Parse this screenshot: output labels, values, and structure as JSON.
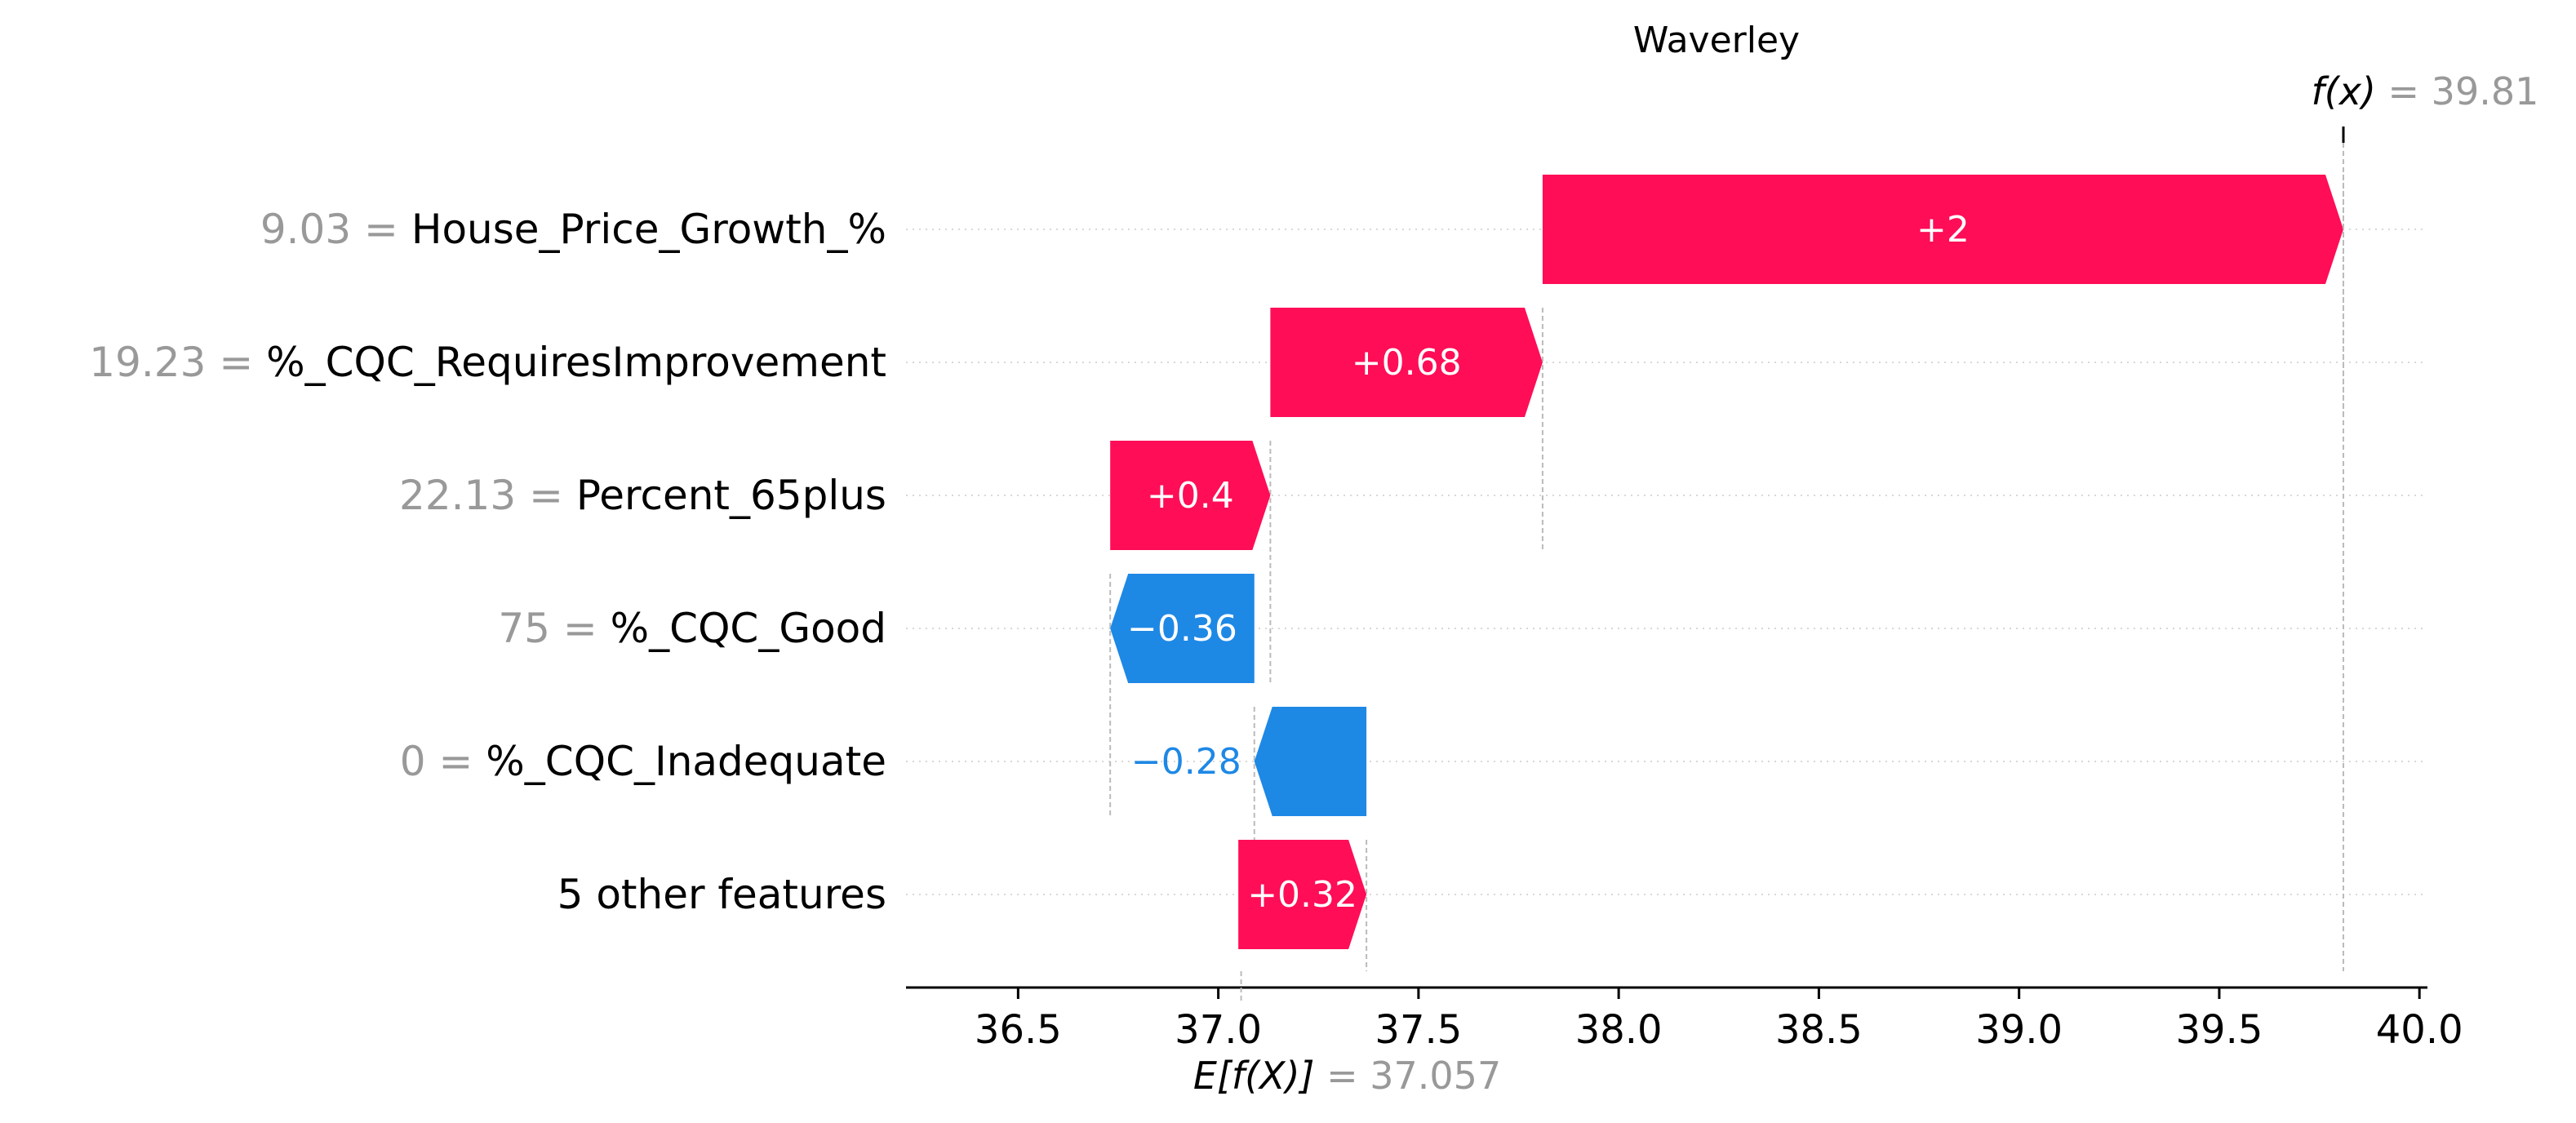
{
  "chart_data": {
    "type": "waterfall",
    "title": "Waverley",
    "xlim": [
      36.22,
      40.02
    ],
    "xticks": [
      36.5,
      37.0,
      37.5,
      38.0,
      38.5,
      39.0,
      39.5,
      40.0
    ],
    "xtick_labels": [
      "36.5",
      "37.0",
      "37.5",
      "38.0",
      "38.5",
      "39.0",
      "39.5",
      "40.0"
    ],
    "base_value": 37.057,
    "base_label": {
      "expr": "E[f(X)]",
      "value_text": "= 37.057"
    },
    "output_value": 39.81,
    "output_label": {
      "expr": "f(x)",
      "value_text": "= 39.81"
    },
    "features": [
      {
        "value_text": "9.03 =",
        "name": "House_Price_Growth_%",
        "start": 37.81,
        "end": 39.81,
        "label": "+2",
        "sign": "pos"
      },
      {
        "value_text": "19.23 =",
        "name": "%_CQC_RequiresImprovement",
        "start": 37.13,
        "end": 37.81,
        "label": "+0.68",
        "sign": "pos"
      },
      {
        "value_text": "22.13 =",
        "name": "Percent_65plus",
        "start": 36.73,
        "end": 37.13,
        "label": "+0.4",
        "sign": "pos"
      },
      {
        "value_text": "75 =",
        "name": "%_CQC_Good",
        "start": 37.09,
        "end": 36.73,
        "label": "−0.36",
        "sign": "neg"
      },
      {
        "value_text": "0 =",
        "name": "%_CQC_Inadequate",
        "start": 37.37,
        "end": 37.09,
        "label": "−0.28",
        "sign": "neg"
      },
      {
        "value_text": "",
        "name": "5 other features",
        "start": 37.05,
        "end": 37.37,
        "label": "+0.32",
        "sign": "pos"
      }
    ],
    "colors": {
      "positive": "#ff0d57",
      "negative": "#1e88e5",
      "value_gray": "#999999",
      "text": "#000000"
    },
    "grid": false
  }
}
